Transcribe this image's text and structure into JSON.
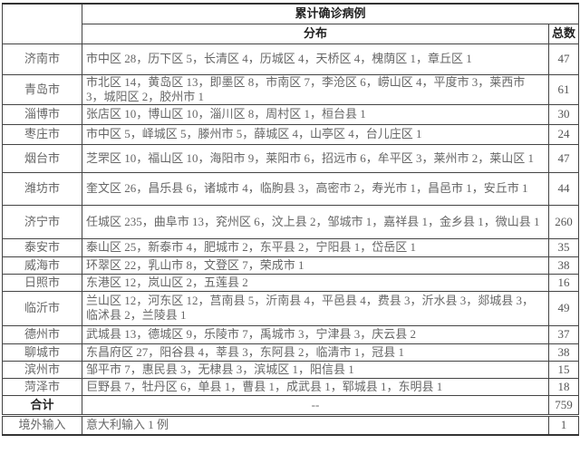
{
  "header": {
    "title": "累计确诊病例",
    "distribution": "分布",
    "total": "总数"
  },
  "rows": [
    {
      "city": "济南市",
      "distribution": "市中区 28，历下区 5，长清区 4，历城区 4，天桥区 4，槐荫区 1，章丘区 1",
      "total": "47"
    },
    {
      "city": "青岛市",
      "distribution": "市北区 14，黄岛区 13，即墨区 8，市南区 7，李沧区 6，崂山区 4，平度市 3，莱西市 3，城阳区 2，胶州市 1",
      "total": "61"
    },
    {
      "city": "淄博市",
      "distribution": "张店区 10，博山区 10，淄川区 8，周村区 1，桓台县 1",
      "total": "30"
    },
    {
      "city": "枣庄市",
      "distribution": "市中区 5，峄城区 5，滕州市 5，薛城区 4，山亭区 4，台儿庄区 1",
      "total": "24"
    },
    {
      "city": "烟台市",
      "distribution": "芝罘区 10，福山区 10，海阳市 9，莱阳市 6，招远市 6，牟平区 3，莱州市 2，莱山区 1",
      "total": "47"
    },
    {
      "city": "潍坊市",
      "distribution": "奎文区 26，昌乐县 6，诸城市 4，临朐县 3，高密市 2，寿光市 1，昌邑市 1，安丘市 1",
      "total": "44"
    },
    {
      "city": "济宁市",
      "distribution": "任城区 235，曲阜市 13，兖州区 6，汶上县 2，邹城市 1，嘉祥县 1，金乡县 1，微山县 1",
      "total": "260"
    },
    {
      "city": "泰安市",
      "distribution": "泰山区 25，新泰市 4，肥城市 2，东平县 2，宁阳县 1，岱岳区 1",
      "total": "35"
    },
    {
      "city": "威海市",
      "distribution": "环翠区 22，乳山市 8，文登区 7，荣成市 1",
      "total": "38"
    },
    {
      "city": "日照市",
      "distribution": "东港区 12，岚山区 2，五莲县 2",
      "total": "16"
    },
    {
      "city": "临沂市",
      "distribution": "兰山区 12，河东区 12，莒南县 5，沂南县 4，平邑县 4，费县 3，沂水县 3，郯城县 3，临沭县 2，兰陵县 1",
      "total": "49"
    },
    {
      "city": "德州市",
      "distribution": "武城县 13，德城区 9，乐陵市 7，禹城市 3，宁津县 3，庆云县 2",
      "total": "37"
    },
    {
      "city": "聊城市",
      "distribution": "东昌府区 27，阳谷县 4，莘县 3，东阿县 2，临清市 1，冠县 1",
      "total": "38"
    },
    {
      "city": "滨州市",
      "distribution": "邹平市 7，惠民县 3，无棣县 3，滨城区 1，阳信县 1",
      "total": "15"
    },
    {
      "city": "菏泽市",
      "distribution": "巨野县 7，牡丹区 6，单县 1，曹县 1，成武县 1，郓城县 1，东明县 1",
      "total": "18"
    }
  ],
  "sum": {
    "label": "合计",
    "distribution": "--",
    "total": "759"
  },
  "imported": {
    "label": "境外输入",
    "distribution": "意大利输入 1 例",
    "total": "1"
  }
}
